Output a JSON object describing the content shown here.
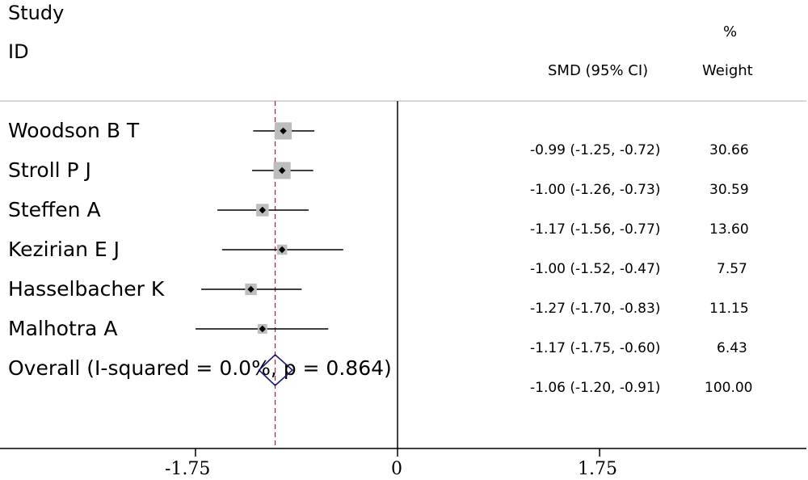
{
  "header": {
    "study_label": "Study",
    "id_label": "ID",
    "smd_label": "SMD (95% CI)",
    "pct_label": "%",
    "weight_label": "Weight"
  },
  "studies": [
    {
      "name": "Woodson B T",
      "smd_text": "-0.99 (-1.25, -0.72)",
      "weight_text": "30.66"
    },
    {
      "name": "Stroll P J",
      "smd_text": "-1.00 (-1.26, -0.73)",
      "weight_text": "30.59"
    },
    {
      "name": "Steffen A",
      "smd_text": "-1.17 (-1.56, -0.77)",
      "weight_text": "13.60"
    },
    {
      "name": "Kezirian E J",
      "smd_text": "-1.00 (-1.52, -0.47)",
      "weight_text": "7.57"
    },
    {
      "name": "Hasselbacher K",
      "smd_text": "-1.27 (-1.70, -0.83)",
      "weight_text": "11.15"
    },
    {
      "name": "Malhotra A",
      "smd_text": "-1.17 (-1.75, -0.60)",
      "weight_text": "6.43"
    }
  ],
  "overall": {
    "label": "Overall  (I-squared = 0.0%, p = 0.864)",
    "smd_text": "-1.06 (-1.20, -0.91)",
    "weight_text": "100.00"
  },
  "x_ticks": [
    "-1.75",
    "0",
    "1.75"
  ],
  "colors": {
    "box": "#bdbdbd",
    "diamond": "#1a1a6e",
    "reference": "#a0303a",
    "axis": "#000000",
    "divider": "#c8c8c8"
  },
  "chart_data": {
    "type": "forest",
    "xlim": [
      -3.5,
      3.5
    ],
    "x_ticks": [
      -1.75,
      0,
      1.75
    ],
    "null_line": 0,
    "reference_line": -1.06,
    "series": [
      {
        "name": "Woodson B T",
        "estimate": -0.99,
        "lower": -1.25,
        "upper": -0.72,
        "weight": 30.66
      },
      {
        "name": "Stroll P J",
        "estimate": -1.0,
        "lower": -1.26,
        "upper": -0.73,
        "weight": 30.59
      },
      {
        "name": "Steffen A",
        "estimate": -1.17,
        "lower": -1.56,
        "upper": -0.77,
        "weight": 13.6
      },
      {
        "name": "Kezirian E J",
        "estimate": -1.0,
        "lower": -1.52,
        "upper": -0.47,
        "weight": 7.57
      },
      {
        "name": "Hasselbacher K",
        "estimate": -1.27,
        "lower": -1.7,
        "upper": -0.83,
        "weight": 11.15
      },
      {
        "name": "Malhotra A",
        "estimate": -1.17,
        "lower": -1.75,
        "upper": -0.6,
        "weight": 6.43
      }
    ],
    "overall": {
      "estimate": -1.06,
      "lower": -1.2,
      "upper": -0.91,
      "weight": 100.0
    }
  }
}
